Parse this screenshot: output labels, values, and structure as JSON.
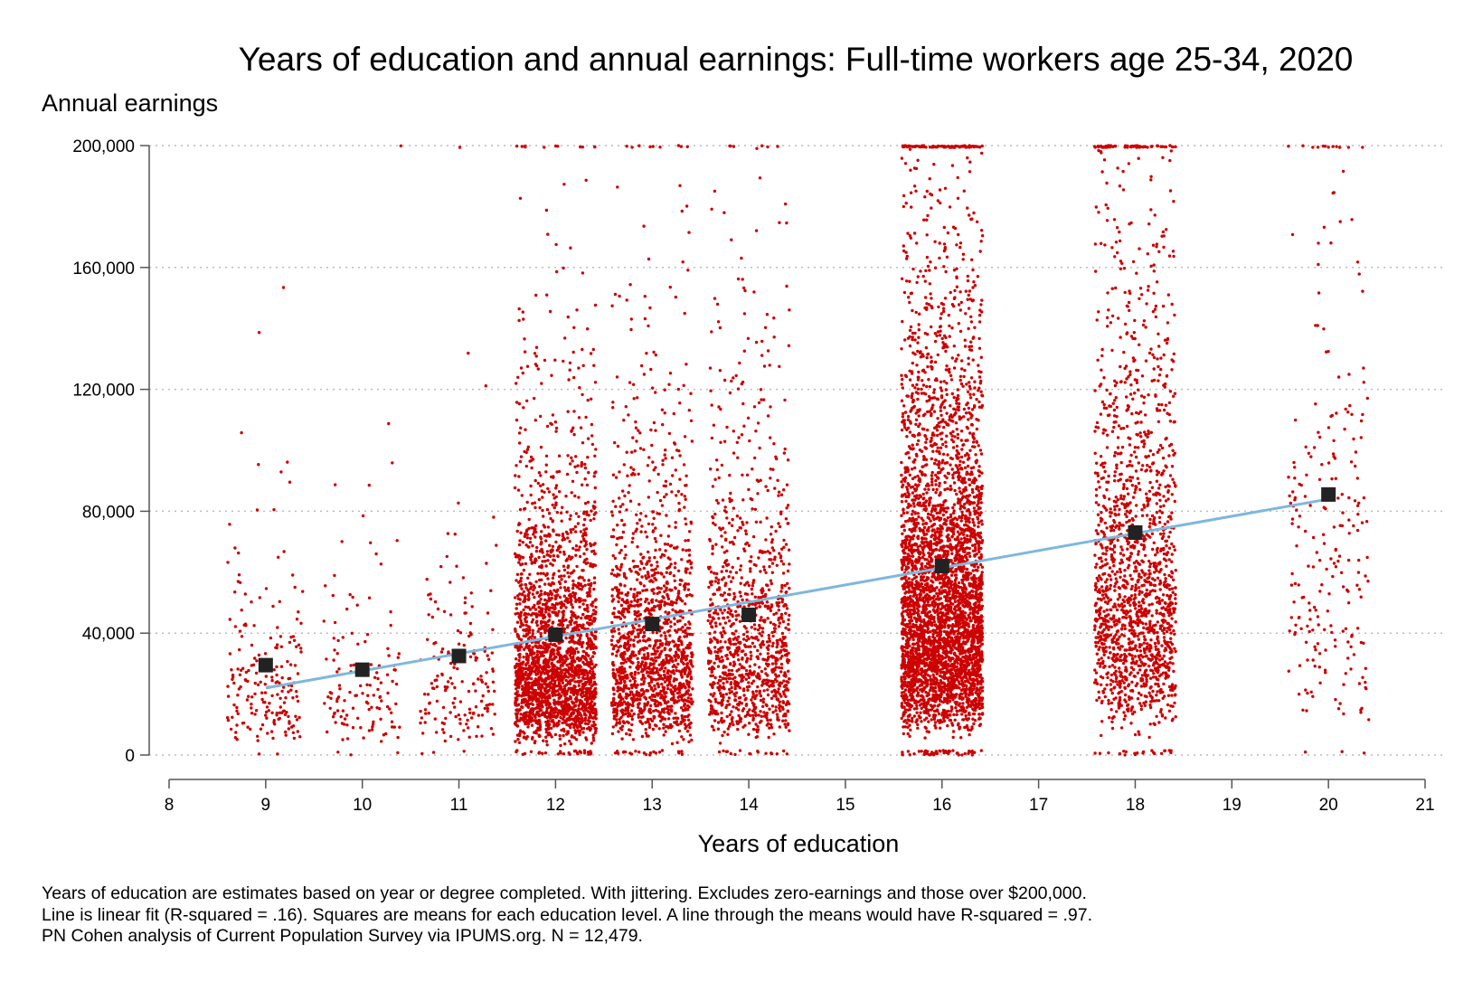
{
  "chart_data": {
    "type": "scatter",
    "title": "Years of education and annual earnings: Full-time workers age 25-34, 2020",
    "xlabel": "Years of education",
    "ylabel": "Annual earnings",
    "xlim": [
      8,
      21
    ],
    "ylim": [
      0,
      200000
    ],
    "x_ticks": [
      8,
      9,
      10,
      11,
      12,
      13,
      14,
      15,
      16,
      17,
      18,
      19,
      20,
      21
    ],
    "x_tick_labels": [
      "8",
      "9",
      "10",
      "11",
      "12",
      "13",
      "14",
      "15",
      "16",
      "17",
      "18",
      "19",
      "20",
      "21"
    ],
    "y_ticks": [
      0,
      40000,
      80000,
      120000,
      160000,
      200000
    ],
    "y_tick_labels": [
      "0",
      "40,000",
      "80,000",
      "120,000",
      "160,000",
      "200,000"
    ],
    "grid": "horizontal dotted",
    "legend": "none",
    "colors": {
      "points": "#cc0000",
      "means": "#222222",
      "fit_line": "#7fb7dc",
      "axis": "#555555",
      "grid": "#bbbbbb"
    },
    "series": [
      {
        "kind": "jittered-points",
        "groups": [
          {
            "x": 9,
            "count": 200,
            "spread": 0.4,
            "mean": 29500
          },
          {
            "x": 10,
            "count": 130,
            "spread": 0.4,
            "mean": 28000
          },
          {
            "x": 11,
            "count": 170,
            "spread": 0.4,
            "mean": 32500
          },
          {
            "x": 12,
            "count": 2400,
            "spread": 0.42,
            "mean": 39500
          },
          {
            "x": 13,
            "count": 1500,
            "spread": 0.42,
            "mean": 43000
          },
          {
            "x": 14,
            "count": 1100,
            "spread": 0.42,
            "mean": 46000
          },
          {
            "x": 16,
            "count": 4100,
            "spread": 0.42,
            "mean": 62000
          },
          {
            "x": 18,
            "count": 1700,
            "spread": 0.42,
            "mean": 73000
          },
          {
            "x": 20,
            "count": 230,
            "spread": 0.42,
            "mean": 85500
          }
        ]
      },
      {
        "kind": "means",
        "points": [
          {
            "x": 9,
            "y": 29500
          },
          {
            "x": 10,
            "y": 28000
          },
          {
            "x": 11,
            "y": 32500
          },
          {
            "x": 12,
            "y": 39500
          },
          {
            "x": 13,
            "y": 43000
          },
          {
            "x": 14,
            "y": 46000
          },
          {
            "x": 16,
            "y": 62000
          },
          {
            "x": 18,
            "y": 73000
          },
          {
            "x": 20,
            "y": 85500
          }
        ]
      },
      {
        "kind": "linear-fit",
        "x": [
          9,
          20
        ],
        "y": [
          22000,
          84000
        ]
      }
    ]
  },
  "notes": [
    "Years of education are estimates based on year or degree completed. With jittering. Excludes zero-earnings and those over $200,000.",
    "Line is linear fit (R-squared = .16). Squares are means for each education level. A line through the means would have R-squared = .97.",
    "PN Cohen analysis of Current Population Survey via IPUMS.org. N = 12,479."
  ]
}
